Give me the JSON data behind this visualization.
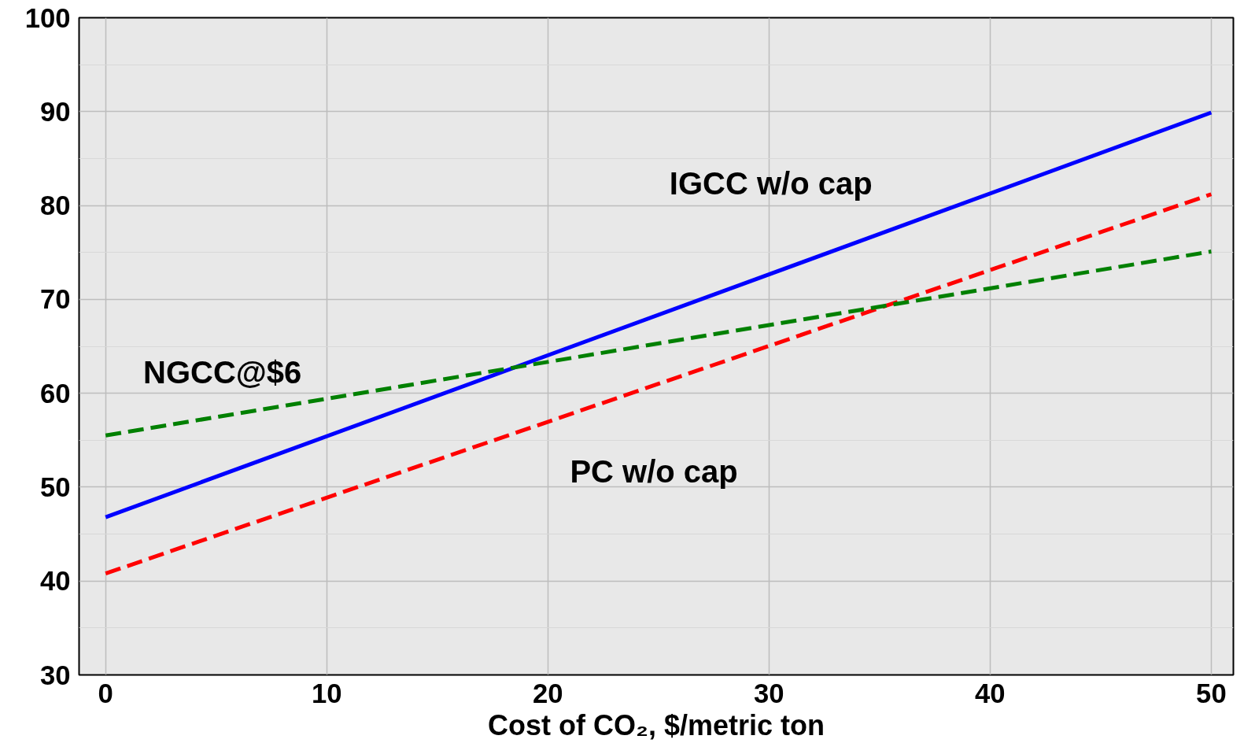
{
  "chart_data": {
    "type": "line",
    "xlabel": "Cost of CO₂, $/metric ton",
    "x": [
      0,
      50
    ],
    "series": [
      {
        "name": "IGCC w/o cap",
        "color": "#0000ff",
        "values": [
          46.8,
          89.9
        ],
        "line_style": "solid"
      },
      {
        "name": "PC w/o cap",
        "color": "#ff0000",
        "values": [
          40.8,
          81.2
        ],
        "line_style": "dashed"
      },
      {
        "name": "NGCC@$6",
        "color": "#008000",
        "values": [
          55.5,
          75.1
        ],
        "line_style": "dashed"
      }
    ],
    "xlim": [
      -1.2,
      51
    ],
    "ylim": [
      30,
      100
    ],
    "xticks": [
      0,
      10,
      20,
      30,
      40,
      50
    ],
    "yticks": [
      30,
      40,
      50,
      60,
      70,
      80,
      90,
      100
    ],
    "grid": true,
    "marker": "none"
  }
}
